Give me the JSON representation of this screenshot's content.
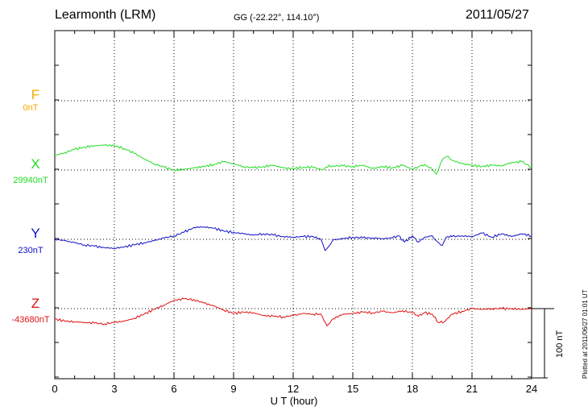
{
  "header": {
    "station": "Learmonth (LRM)",
    "coords": "GG (-22.22°, 114.10°)",
    "date": "2011/05/27"
  },
  "side_note": "Plotted at 2011/06/27 01:01 UT",
  "colors": {
    "F": "#f5a800",
    "X": "#22dd22",
    "Y": "#1010c8",
    "Z": "#e01010",
    "grid": "#000000"
  },
  "chart_data": {
    "type": "line",
    "xlabel": "U T (hour)",
    "xlim": [
      0,
      24
    ],
    "xticks": [
      "0",
      "3",
      "6",
      "9",
      "12",
      "15",
      "18",
      "21",
      "24"
    ],
    "units": "nT",
    "scale_bar": "100 nT",
    "grid": true,
    "series": [
      {
        "name": "F",
        "baseline_label": "0nT",
        "x": [],
        "values": []
      },
      {
        "name": "X",
        "baseline_label": "29940nT",
        "x": [
          0,
          0.5,
          1,
          1.5,
          2,
          2.5,
          3,
          3.5,
          4,
          4.5,
          5,
          5.5,
          6,
          6.5,
          7,
          7.5,
          8,
          8.5,
          9,
          9.5,
          10,
          10.5,
          11,
          11.5,
          12,
          12.5,
          13,
          13.5,
          13.8,
          14,
          14.5,
          15,
          15.5,
          16,
          16.5,
          17,
          17.5,
          18,
          18.3,
          18.6,
          19,
          19.2,
          19.4,
          19.6,
          19.8,
          20,
          20.5,
          21,
          21.5,
          22,
          22.5,
          23,
          23.5,
          24
        ],
        "values": [
          21,
          25,
          30,
          33,
          35,
          36,
          35,
          31,
          24,
          16,
          9,
          4,
          0,
          1,
          3,
          5,
          8,
          12,
          9,
          5,
          3,
          5,
          7,
          3,
          2,
          4,
          4,
          0,
          7,
          6,
          6,
          5,
          7,
          2,
          5,
          3,
          7,
          1,
          5,
          8,
          1,
          -6,
          8,
          18,
          20,
          14,
          9,
          7,
          5,
          7,
          6,
          11,
          12,
          4
        ]
      },
      {
        "name": "Y",
        "baseline_label": "230nT",
        "x": [
          0,
          0.5,
          1,
          1.5,
          2,
          2.5,
          3,
          3.5,
          4,
          4.5,
          5,
          5.5,
          6,
          6.5,
          7,
          7.5,
          8,
          8.5,
          9,
          9.5,
          10,
          10.5,
          11,
          11.5,
          12,
          12.5,
          13,
          13.4,
          13.6,
          13.8,
          14,
          14.5,
          15,
          15.5,
          16,
          16.5,
          17,
          17.3,
          17.6,
          18,
          18.3,
          18.6,
          19,
          19.2,
          19.5,
          19.7,
          20,
          20.5,
          21,
          21.5,
          22,
          22.5,
          23,
          23.5,
          24
        ],
        "values": [
          0,
          -2,
          -5,
          -8,
          -10,
          -12,
          -13,
          -11,
          -8,
          -5,
          -2,
          2,
          5,
          10,
          17,
          18,
          16,
          12,
          10,
          8,
          6,
          8,
          6,
          4,
          3,
          4,
          4,
          0,
          -16,
          -10,
          -1,
          1,
          3,
          2,
          2,
          1,
          2,
          5,
          -4,
          5,
          -4,
          3,
          5,
          -2,
          -9,
          3,
          4,
          5,
          4,
          9,
          3,
          8,
          4,
          8,
          5
        ]
      },
      {
        "name": "Z",
        "baseline_label": "-43680nT",
        "x": [
          0,
          0.5,
          1,
          1.5,
          2,
          2.5,
          3,
          3.5,
          4,
          4.5,
          5,
          5.5,
          6,
          6.5,
          7,
          7.5,
          8,
          8.5,
          9,
          9.5,
          10,
          10.5,
          11,
          11.5,
          12,
          12.5,
          13,
          13.4,
          13.7,
          14,
          14.5,
          15,
          15.5,
          16,
          16.5,
          17,
          17.5,
          18,
          18.3,
          18.6,
          19,
          19.3,
          19.6,
          20,
          20.5,
          21,
          21.5,
          22,
          22.5,
          23,
          23.5,
          24
        ],
        "values": [
          -15,
          -18,
          -19,
          -20,
          -21,
          -22,
          -20,
          -18,
          -14,
          -8,
          -1,
          5,
          12,
          14,
          13,
          8,
          4,
          -2,
          -7,
          -5,
          -6,
          -10,
          -11,
          -12,
          -10,
          -7,
          -8,
          -8,
          -25,
          -15,
          -8,
          -7,
          -5,
          -6,
          -4,
          -6,
          -3,
          -6,
          -11,
          -6,
          -8,
          -20,
          -19,
          -8,
          -4,
          0,
          -1,
          0,
          0,
          0,
          -1,
          0
        ]
      }
    ]
  }
}
